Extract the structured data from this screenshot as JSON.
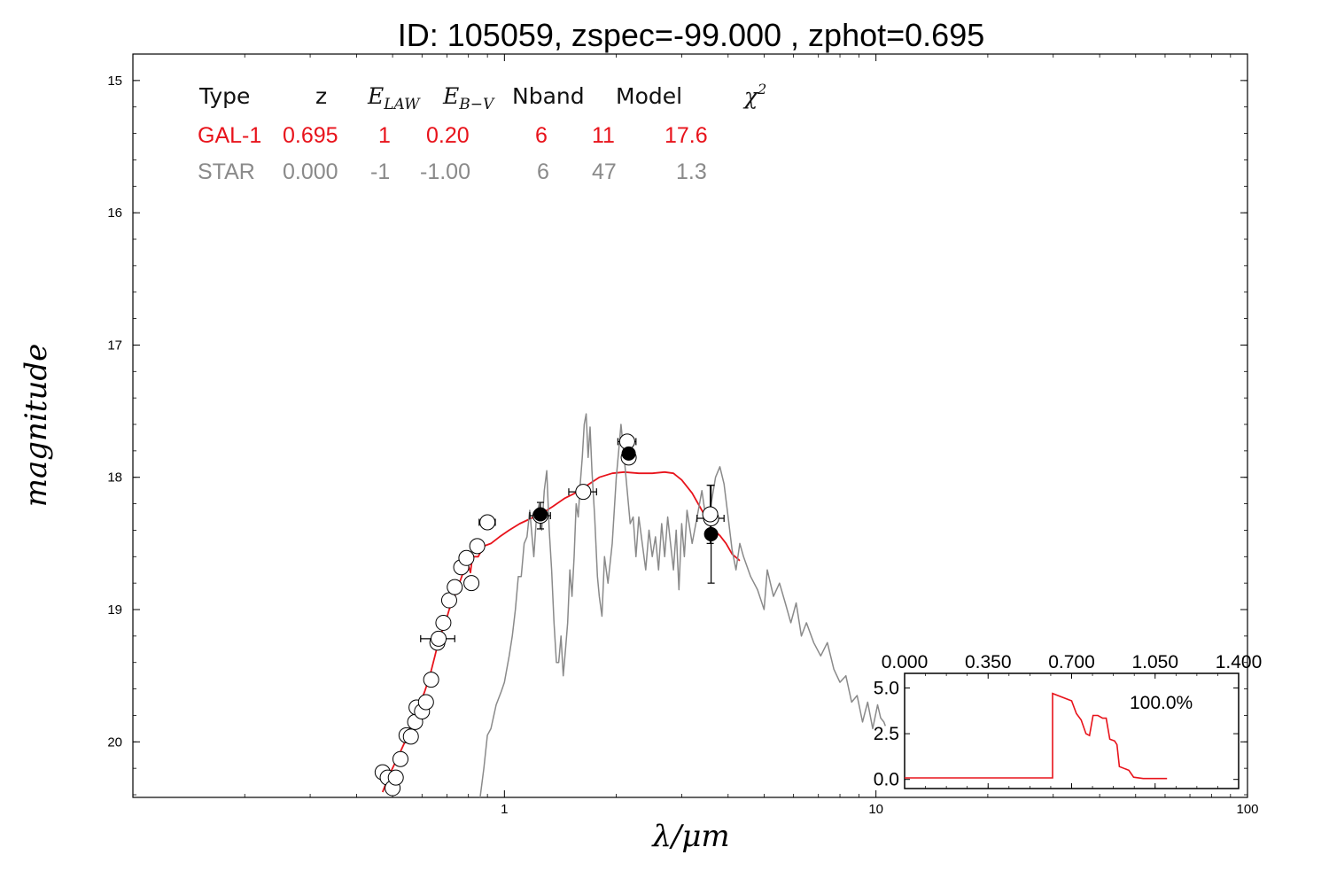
{
  "title": "ID:  105059, zspec=-99.000 , zphot=0.695",
  "colors": {
    "galaxy": "#e8131b",
    "star": "#8a8a8a",
    "axes": "#000000",
    "open_marker_fill": "#ffffff",
    "filled_marker": "#000000"
  },
  "chart_data": [
    {
      "type": "line",
      "title": "ID:  105059, zspec=-99.000 , zphot=0.695",
      "xlabel": "λ/μm",
      "ylabel": "magnitude",
      "xscale": "log",
      "xlim": [
        0.1,
        100
      ],
      "ylim": [
        20.42,
        14.8
      ],
      "y_inverted": true,
      "x_tick_labels": [
        "1",
        "10",
        "100"
      ],
      "x_tick_values": [
        1,
        10,
        100
      ],
      "y_tick_labels": [
        "15",
        "16",
        "17",
        "18",
        "19",
        "20"
      ],
      "y_tick_values": [
        15,
        16,
        17,
        18,
        19,
        20
      ],
      "grid": false,
      "legend_table": {
        "header": [
          "Type",
          "z",
          "E_LAW",
          "E_B−V",
          "Nband",
          "Model",
          "χ²"
        ],
        "rows": [
          {
            "type": "GAL-1",
            "z": "0.695",
            "elaw": "1",
            "ebv": "0.20",
            "nband": "6",
            "model": "11",
            "chi2": "17.6",
            "color": "#e8131b"
          },
          {
            "type": "STAR",
            "z": "0.000",
            "elaw": "-1",
            "ebv": "-1.00",
            "nband": "6",
            "model": "47",
            "chi2": "1.3",
            "color": "#8a8a8a"
          }
        ]
      },
      "series": [
        {
          "name": "GAL-1",
          "style": "line",
          "color": "#e8131b",
          "points": [
            [
              0.47,
              20.38
            ],
            [
              0.49,
              20.25
            ],
            [
              0.52,
              20.1
            ],
            [
              0.55,
              19.95
            ],
            [
              0.58,
              19.78
            ],
            [
              0.61,
              19.62
            ],
            [
              0.63,
              19.5
            ],
            [
              0.65,
              19.35
            ],
            [
              0.67,
              19.2
            ],
            [
              0.69,
              19.12
            ],
            [
              0.71,
              19.0
            ],
            [
              0.73,
              18.92
            ],
            [
              0.75,
              18.83
            ],
            [
              0.77,
              18.74
            ],
            [
              0.79,
              18.7
            ],
            [
              0.8,
              18.67
            ],
            [
              0.81,
              18.72
            ],
            [
              0.82,
              18.6
            ],
            [
              0.85,
              18.6
            ],
            [
              0.88,
              18.52
            ],
            [
              0.92,
              18.5
            ],
            [
              0.97,
              18.45
            ],
            [
              1.03,
              18.4
            ],
            [
              1.1,
              18.35
            ],
            [
              1.18,
              18.31
            ],
            [
              1.25,
              18.28
            ],
            [
              1.35,
              18.22
            ],
            [
              1.45,
              18.16
            ],
            [
              1.55,
              18.12
            ],
            [
              1.65,
              18.07
            ],
            [
              1.8,
              18.0
            ],
            [
              1.95,
              17.97
            ],
            [
              2.1,
              17.96
            ],
            [
              2.3,
              17.97
            ],
            [
              2.5,
              17.97
            ],
            [
              2.7,
              17.96
            ],
            [
              2.85,
              17.97
            ],
            [
              3.0,
              18.02
            ],
            [
              3.2,
              18.12
            ],
            [
              3.4,
              18.25
            ],
            [
              3.6,
              18.38
            ],
            [
              3.8,
              18.44
            ],
            [
              3.95,
              18.5
            ],
            [
              4.1,
              18.58
            ],
            [
              4.3,
              18.63
            ]
          ]
        },
        {
          "name": "STAR",
          "style": "line",
          "color": "#8a8a8a",
          "points": [
            [
              0.86,
              20.42
            ],
            [
              0.88,
              20.2
            ],
            [
              0.9,
              19.95
            ],
            [
              0.92,
              19.9
            ],
            [
              0.95,
              19.72
            ],
            [
              0.98,
              19.62
            ],
            [
              1.0,
              19.55
            ],
            [
              1.03,
              19.35
            ],
            [
              1.05,
              19.2
            ],
            [
              1.07,
              19.0
            ],
            [
              1.09,
              18.75
            ],
            [
              1.11,
              18.75
            ],
            [
              1.13,
              18.5
            ],
            [
              1.15,
              18.45
            ],
            [
              1.17,
              18.25
            ],
            [
              1.2,
              18.6
            ],
            [
              1.22,
              18.3
            ],
            [
              1.24,
              18.2
            ],
            [
              1.26,
              18.4
            ],
            [
              1.28,
              18.1
            ],
            [
              1.3,
              17.95
            ],
            [
              1.32,
              18.4
            ],
            [
              1.34,
              18.7
            ],
            [
              1.36,
              19.1
            ],
            [
              1.38,
              19.4
            ],
            [
              1.4,
              19.4
            ],
            [
              1.42,
              19.2
            ],
            [
              1.44,
              19.5
            ],
            [
              1.46,
              19.3
            ],
            [
              1.48,
              19.1
            ],
            [
              1.5,
              18.7
            ],
            [
              1.52,
              18.9
            ],
            [
              1.54,
              18.6
            ],
            [
              1.56,
              18.2
            ],
            [
              1.58,
              18.3
            ],
            [
              1.6,
              18.05
            ],
            [
              1.62,
              17.85
            ],
            [
              1.64,
              17.6
            ],
            [
              1.66,
              17.52
            ],
            [
              1.68,
              17.85
            ],
            [
              1.7,
              17.62
            ],
            [
              1.72,
              17.95
            ],
            [
              1.75,
              18.3
            ],
            [
              1.78,
              18.75
            ],
            [
              1.8,
              18.9
            ],
            [
              1.83,
              19.05
            ],
            [
              1.86,
              18.6
            ],
            [
              1.9,
              18.8
            ],
            [
              1.95,
              18.5
            ],
            [
              2.0,
              18.0
            ],
            [
              2.03,
              17.8
            ],
            [
              2.06,
              17.6
            ],
            [
              2.1,
              17.85
            ],
            [
              2.14,
              18.1
            ],
            [
              2.18,
              18.35
            ],
            [
              2.22,
              18.3
            ],
            [
              2.26,
              18.6
            ],
            [
              2.3,
              18.3
            ],
            [
              2.35,
              18.5
            ],
            [
              2.4,
              18.7
            ],
            [
              2.45,
              18.4
            ],
            [
              2.5,
              18.6
            ],
            [
              2.55,
              18.45
            ],
            [
              2.6,
              18.7
            ],
            [
              2.65,
              18.35
            ],
            [
              2.7,
              18.6
            ],
            [
              2.75,
              18.3
            ],
            [
              2.8,
              18.5
            ],
            [
              2.85,
              18.7
            ],
            [
              2.9,
              18.4
            ],
            [
              2.95,
              18.85
            ],
            [
              3.0,
              18.35
            ],
            [
              3.05,
              18.6
            ],
            [
              3.1,
              18.25
            ],
            [
              3.2,
              18.5
            ],
            [
              3.3,
              18.3
            ],
            [
              3.4,
              18.1
            ],
            [
              3.5,
              18.35
            ],
            [
              3.6,
              18.2
            ],
            [
              3.7,
              18.0
            ],
            [
              3.8,
              17.92
            ],
            [
              3.9,
              18.05
            ],
            [
              4.0,
              18.3
            ],
            [
              4.1,
              18.55
            ],
            [
              4.2,
              18.7
            ],
            [
              4.3,
              18.5
            ],
            [
              4.4,
              18.6
            ],
            [
              4.6,
              18.75
            ],
            [
              4.8,
              18.85
            ],
            [
              5.0,
              19.0
            ],
            [
              5.1,
              18.7
            ],
            [
              5.3,
              18.9
            ],
            [
              5.5,
              18.8
            ],
            [
              5.7,
              18.95
            ],
            [
              5.9,
              19.1
            ],
            [
              6.1,
              18.95
            ],
            [
              6.3,
              19.2
            ],
            [
              6.5,
              19.1
            ],
            [
              6.8,
              19.25
            ],
            [
              7.1,
              19.35
            ],
            [
              7.4,
              19.25
            ],
            [
              7.7,
              19.45
            ],
            [
              8.0,
              19.55
            ],
            [
              8.3,
              19.5
            ],
            [
              8.6,
              19.7
            ],
            [
              8.9,
              19.65
            ],
            [
              9.2,
              19.85
            ],
            [
              9.5,
              19.7
            ],
            [
              9.8,
              19.9
            ],
            [
              10.1,
              19.72
            ],
            [
              10.3,
              19.82
            ],
            [
              10.5,
              19.85
            ],
            [
              10.6,
              19.88
            ]
          ]
        }
      ],
      "photometry": {
        "open_points": [
          {
            "x": 0.47,
            "y": 20.23,
            "xerr": 0.018,
            "yerr": 0.0
          },
          {
            "x": 0.485,
            "y": 20.27,
            "xerr": 0.0,
            "yerr": 0.0
          },
          {
            "x": 0.5,
            "y": 20.35,
            "xerr": 0.0,
            "yerr": 0.0
          },
          {
            "x": 0.51,
            "y": 20.27,
            "xerr": 0.02,
            "yerr": 0.0
          },
          {
            "x": 0.525,
            "y": 20.13,
            "xerr": 0.0,
            "yerr": 0.0
          },
          {
            "x": 0.545,
            "y": 19.95,
            "xerr": 0.01,
            "yerr": 0.0
          },
          {
            "x": 0.56,
            "y": 19.96,
            "xerr": 0.0,
            "yerr": 0.0
          },
          {
            "x": 0.575,
            "y": 19.85,
            "xerr": 0.0,
            "yerr": 0.0
          },
          {
            "x": 0.58,
            "y": 19.74,
            "xerr": 0.0,
            "yerr": 0.0
          },
          {
            "x": 0.6,
            "y": 19.77,
            "xerr": 0.0,
            "yerr": 0.0
          },
          {
            "x": 0.615,
            "y": 19.7,
            "xerr": 0.0,
            "yerr": 0.0
          },
          {
            "x": 0.635,
            "y": 19.53,
            "xerr": 0.0,
            "yerr": 0.0
          },
          {
            "x": 0.66,
            "y": 19.25,
            "xerr": 0.0,
            "yerr": 0.0
          },
          {
            "x": 0.665,
            "y": 19.22,
            "xerr": 0.07,
            "yerr": 0.0
          },
          {
            "x": 0.685,
            "y": 19.1,
            "xerr": 0.0,
            "yerr": 0.0
          },
          {
            "x": 0.71,
            "y": 18.93,
            "xerr": 0.0,
            "yerr": 0.0
          },
          {
            "x": 0.735,
            "y": 18.83,
            "xerr": 0.0,
            "yerr": 0.0
          },
          {
            "x": 0.765,
            "y": 18.68,
            "xerr": 0.0,
            "yerr": 0.0
          },
          {
            "x": 0.79,
            "y": 18.61,
            "xerr": 0.0,
            "yerr": 0.0
          },
          {
            "x": 0.815,
            "y": 18.8,
            "xerr": 0.0,
            "yerr": 0.0
          },
          {
            "x": 0.845,
            "y": 18.52,
            "xerr": 0.0,
            "yerr": 0.0
          },
          {
            "x": 0.9,
            "y": 18.34,
            "xerr": 0.045,
            "yerr": 0.0
          },
          {
            "x": 1.25,
            "y": 18.29,
            "xerr": 0.08,
            "yerr": 0.1
          },
          {
            "x": 1.63,
            "y": 18.11,
            "xerr": 0.14,
            "yerr": 0.0
          },
          {
            "x": 2.14,
            "y": 17.73,
            "xerr": 0.12,
            "yerr": 0.0
          },
          {
            "x": 2.16,
            "y": 17.85,
            "xerr": 0.0,
            "yerr": 0.0
          },
          {
            "x": 3.6,
            "y": 18.31,
            "xerr": 0.3,
            "yerr": 0.0
          },
          {
            "x": 3.58,
            "y": 18.28,
            "xerr": 0.0,
            "yerr": 0.22
          }
        ],
        "filled_points": [
          {
            "x": 1.25,
            "y": 18.28,
            "xerr": 0.0,
            "yerr": 0.0
          },
          {
            "x": 2.16,
            "y": 17.82,
            "xerr": 0.0,
            "yerr": 0.0
          },
          {
            "x": 3.6,
            "y": 18.43,
            "xerr": 0.0,
            "yerr": 0.37
          }
        ]
      }
    },
    {
      "type": "line",
      "title": "",
      "xlim": [
        0.0,
        1.4
      ],
      "ylim": [
        -0.5,
        5.8
      ],
      "x_tick_labels": [
        "0.000",
        "0.350",
        "0.700",
        "1.050",
        "1.400"
      ],
      "x_tick_values": [
        0.0,
        0.35,
        0.7,
        1.05,
        1.4
      ],
      "y_tick_labels": [
        "0.0",
        "2.5",
        "5.0"
      ],
      "y_tick_values": [
        0.0,
        2.5,
        5.0
      ],
      "annotation": "100.0%",
      "series": [
        {
          "color": "#e8131b",
          "points": [
            [
              0.0,
              0.08
            ],
            [
              0.62,
              0.08
            ],
            [
              0.62,
              4.7
            ],
            [
              0.7,
              4.3
            ],
            [
              0.72,
              3.6
            ],
            [
              0.74,
              3.25
            ],
            [
              0.76,
              2.5
            ],
            [
              0.775,
              2.4
            ],
            [
              0.79,
              3.5
            ],
            [
              0.81,
              3.5
            ],
            [
              0.83,
              3.35
            ],
            [
              0.845,
              3.35
            ],
            [
              0.86,
              2.2
            ],
            [
              0.88,
              2.1
            ],
            [
              0.89,
              1.9
            ],
            [
              0.9,
              0.7
            ],
            [
              0.94,
              0.5
            ],
            [
              0.96,
              0.12
            ],
            [
              1.0,
              0.05
            ],
            [
              1.1,
              0.05
            ]
          ]
        }
      ]
    }
  ]
}
